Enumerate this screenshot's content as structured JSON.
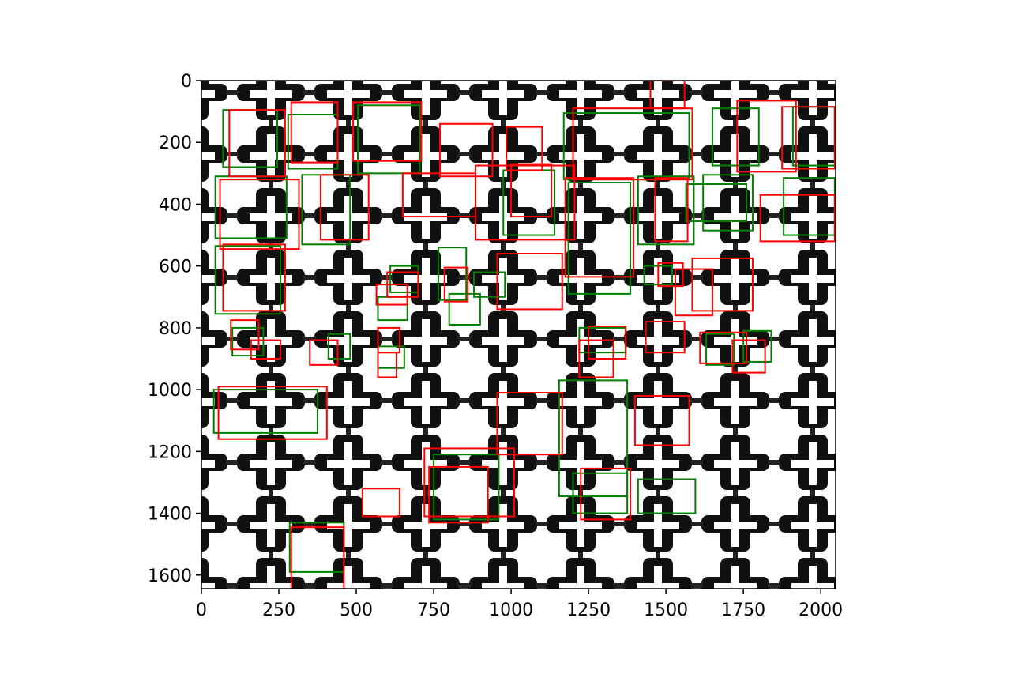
{
  "chart_data": {
    "type": "scatter",
    "title": "",
    "xlabel": "",
    "ylabel": "",
    "xlim": [
      0,
      2048
    ],
    "ylim": [
      1644,
      0
    ],
    "x_ticks": [
      0,
      250,
      500,
      750,
      1000,
      1250,
      1500,
      1750,
      2000
    ],
    "y_ticks": [
      0,
      200,
      400,
      600,
      800,
      1000,
      1200,
      1400,
      1600
    ],
    "grid": false,
    "background": "grayscale image of a grid of black cross-shaped outlines on white",
    "box_series": [
      {
        "color": "#008000",
        "boxes": [
          [
            70,
            95,
            245,
            280
          ],
          [
            280,
            110,
            440,
            285
          ],
          [
            505,
            80,
            705,
            300
          ],
          [
            1170,
            105,
            1575,
            320
          ],
          [
            1650,
            90,
            1800,
            275
          ],
          [
            1910,
            85,
            2045,
            275
          ],
          [
            45,
            310,
            275,
            510
          ],
          [
            325,
            305,
            480,
            530
          ],
          [
            975,
            290,
            1140,
            500
          ],
          [
            1410,
            310,
            1590,
            530
          ],
          [
            1620,
            305,
            1780,
            485
          ],
          [
            1880,
            315,
            2045,
            500
          ],
          [
            45,
            535,
            255,
            755
          ],
          [
            610,
            600,
            700,
            685
          ],
          [
            765,
            540,
            855,
            710
          ],
          [
            800,
            690,
            900,
            790
          ],
          [
            880,
            620,
            980,
            700
          ],
          [
            1185,
            330,
            1385,
            690
          ],
          [
            1430,
            600,
            1520,
            660
          ],
          [
            100,
            800,
            200,
            890
          ],
          [
            410,
            820,
            480,
            900
          ],
          [
            570,
            860,
            655,
            930
          ],
          [
            1220,
            800,
            1370,
            880
          ],
          [
            1630,
            820,
            1720,
            920
          ],
          [
            1750,
            810,
            1840,
            910
          ],
          [
            40,
            1000,
            375,
            1140
          ],
          [
            1155,
            970,
            1375,
            1345
          ],
          [
            750,
            1210,
            960,
            1420
          ],
          [
            1200,
            1270,
            1375,
            1400
          ],
          [
            1410,
            1290,
            1595,
            1400
          ],
          [
            285,
            1430,
            460,
            1590
          ],
          [
            570,
            700,
            665,
            775
          ],
          [
            1565,
            335,
            1760,
            455
          ]
        ]
      },
      {
        "color": "#ff0000",
        "boxes": [
          [
            1450,
            0,
            1560,
            90
          ],
          [
            90,
            95,
            270,
            310
          ],
          [
            290,
            70,
            440,
            265
          ],
          [
            490,
            70,
            710,
            260
          ],
          [
            770,
            140,
            940,
            310
          ],
          [
            1200,
            90,
            1585,
            320
          ],
          [
            1730,
            65,
            1920,
            295
          ],
          [
            1875,
            85,
            2045,
            285
          ],
          [
            985,
            150,
            1100,
            290
          ],
          [
            1000,
            270,
            1130,
            440
          ],
          [
            885,
            275,
            1205,
            515
          ],
          [
            650,
            300,
            885,
            440
          ],
          [
            60,
            320,
            315,
            545
          ],
          [
            385,
            305,
            540,
            515
          ],
          [
            1175,
            315,
            1395,
            635
          ],
          [
            1465,
            315,
            1570,
            520
          ],
          [
            1805,
            370,
            2045,
            520
          ],
          [
            70,
            530,
            270,
            745
          ],
          [
            600,
            620,
            700,
            700
          ],
          [
            785,
            605,
            860,
            715
          ],
          [
            1475,
            590,
            1555,
            665
          ],
          [
            1530,
            610,
            1650,
            760
          ],
          [
            1585,
            575,
            1780,
            745
          ],
          [
            955,
            560,
            1165,
            740
          ],
          [
            565,
            660,
            665,
            725
          ],
          [
            95,
            775,
            185,
            870
          ],
          [
            160,
            840,
            255,
            900
          ],
          [
            350,
            840,
            440,
            920
          ],
          [
            570,
            800,
            640,
            880
          ],
          [
            570,
            880,
            630,
            960
          ],
          [
            1250,
            795,
            1370,
            900
          ],
          [
            1220,
            840,
            1330,
            960
          ],
          [
            1435,
            780,
            1560,
            880
          ],
          [
            1610,
            815,
            1760,
            915
          ],
          [
            1715,
            840,
            1820,
            945
          ],
          [
            55,
            990,
            405,
            1160
          ],
          [
            1400,
            1020,
            1575,
            1180
          ],
          [
            955,
            1010,
            1165,
            1210
          ],
          [
            720,
            1190,
            1010,
            1410
          ],
          [
            735,
            1250,
            925,
            1430
          ],
          [
            1225,
            1255,
            1385,
            1420
          ],
          [
            520,
            1320,
            640,
            1410
          ],
          [
            290,
            1445,
            460,
            1645
          ]
        ]
      }
    ]
  }
}
